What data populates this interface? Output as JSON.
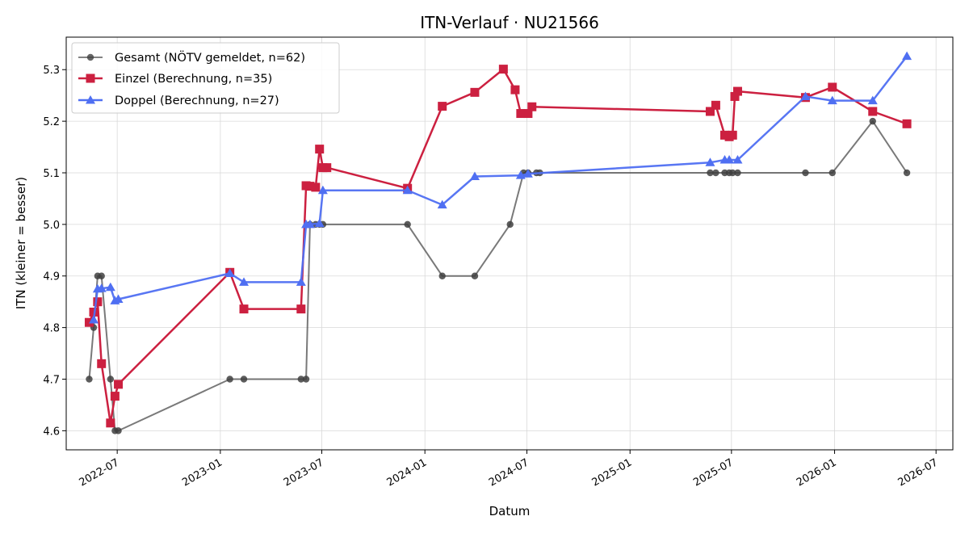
{
  "chart_data": {
    "type": "line",
    "title": "ITN-Verlauf · NU21566",
    "xlabel": "Datum",
    "ylabel": "ITN  (kleiner = besser)",
    "x_axis_type": "date",
    "xlim": [
      "2022-04-01",
      "2026-07-31"
    ],
    "ylim": [
      4.563,
      5.363
    ],
    "x_ticks": [
      "2022-07-01",
      "2023-01-01",
      "2023-07-01",
      "2024-01-01",
      "2024-07-01",
      "2025-01-01",
      "2025-07-01",
      "2026-01-01",
      "2026-07-01"
    ],
    "x_tick_labels": [
      "2022-07",
      "2023-01",
      "2023-07",
      "2024-01",
      "2024-07",
      "2025-01",
      "2025-07",
      "2026-01",
      "2026-07"
    ],
    "y_ticks": [
      4.6,
      4.7,
      4.8,
      4.9,
      5.0,
      5.1,
      5.2,
      5.3
    ],
    "y_tick_labels": [
      "4.6",
      "4.7",
      "4.8",
      "4.9",
      "5.0",
      "5.1",
      "5.2",
      "5.3"
    ],
    "grid": true,
    "legend_position": "top-left",
    "series": [
      {
        "name": "Gesamt (NÖTV gemeldet, n=62)",
        "color": "#404040",
        "marker": "circle",
        "x": [
          "2022-05-12",
          "2022-05-20",
          "2022-05-27",
          "2022-06-03",
          "2022-06-19",
          "2022-06-27",
          "2022-07-03",
          "2023-01-18",
          "2023-02-12",
          "2023-05-25",
          "2023-06-03",
          "2023-06-10",
          "2023-06-20",
          "2023-06-27",
          "2023-07-03",
          "2023-12-01",
          "2024-02-01",
          "2024-03-30",
          "2024-06-01",
          "2024-06-25",
          "2024-07-03",
          "2024-07-18",
          "2024-07-24",
          "2025-05-24",
          "2025-06-03",
          "2025-06-19",
          "2025-06-27",
          "2025-07-03",
          "2025-07-12",
          "2025-11-10",
          "2025-12-28",
          "2026-03-10",
          "2026-05-10"
        ],
        "values": [
          4.7,
          4.8,
          4.9,
          4.9,
          4.7,
          4.6,
          4.6,
          4.7,
          4.7,
          4.7,
          4.7,
          5.0,
          5.0,
          5.0,
          5.0,
          5.0,
          4.9,
          4.9,
          5.0,
          5.1,
          5.1,
          5.1,
          5.1,
          5.1,
          5.1,
          5.1,
          5.1,
          5.1,
          5.1,
          5.1,
          5.1,
          5.2,
          5.1
        ]
      },
      {
        "name": "Einzel (Berechnung, n=35)",
        "color": "#cc2040",
        "marker": "square",
        "x": [
          "2022-05-12",
          "2022-05-20",
          "2022-05-27",
          "2022-06-03",
          "2022-06-19",
          "2022-06-27",
          "2022-07-03",
          "2023-01-18",
          "2023-02-12",
          "2023-05-25",
          "2023-06-03",
          "2023-06-10",
          "2023-06-20",
          "2023-06-27",
          "2023-07-03",
          "2023-07-10",
          "2023-12-01",
          "2024-02-01",
          "2024-03-30",
          "2024-05-20",
          "2024-06-10",
          "2024-06-20",
          "2024-07-03",
          "2024-07-10",
          "2025-05-24",
          "2025-06-03",
          "2025-06-19",
          "2025-06-27",
          "2025-07-03",
          "2025-07-07",
          "2025-07-12",
          "2025-11-10",
          "2025-12-28",
          "2026-03-10",
          "2026-05-10"
        ],
        "values": [
          4.81,
          4.83,
          4.85,
          4.73,
          4.615,
          4.667,
          4.69,
          4.907,
          4.836,
          4.836,
          5.075,
          5.074,
          5.072,
          5.146,
          5.11,
          5.11,
          5.07,
          5.229,
          5.256,
          5.301,
          5.261,
          5.215,
          5.215,
          5.228,
          5.219,
          5.231,
          5.173,
          5.17,
          5.173,
          5.248,
          5.258,
          5.246,
          5.266,
          5.219,
          5.195
        ]
      },
      {
        "name": "Doppel (Berechnung, n=27)",
        "color": "#4f6ff2",
        "marker": "triangle",
        "x": [
          "2022-05-20",
          "2022-05-27",
          "2022-06-03",
          "2022-06-19",
          "2022-06-27",
          "2022-07-03",
          "2023-01-18",
          "2023-02-12",
          "2023-05-25",
          "2023-06-03",
          "2023-06-10",
          "2023-06-27",
          "2023-07-03",
          "2023-12-01",
          "2024-02-01",
          "2024-03-30",
          "2024-06-20",
          "2024-07-03",
          "2025-05-24",
          "2025-06-19",
          "2025-06-27",
          "2025-07-12",
          "2025-11-10",
          "2025-12-28",
          "2026-03-10",
          "2026-05-10"
        ],
        "values": [
          4.815,
          4.875,
          4.876,
          4.878,
          4.852,
          4.855,
          4.905,
          4.888,
          4.888,
          5.0,
          5.0,
          5.002,
          5.066,
          5.066,
          5.038,
          5.093,
          5.095,
          5.098,
          5.12,
          5.125,
          5.125,
          5.125,
          5.248,
          5.24,
          5.24,
          5.326
        ]
      }
    ]
  }
}
